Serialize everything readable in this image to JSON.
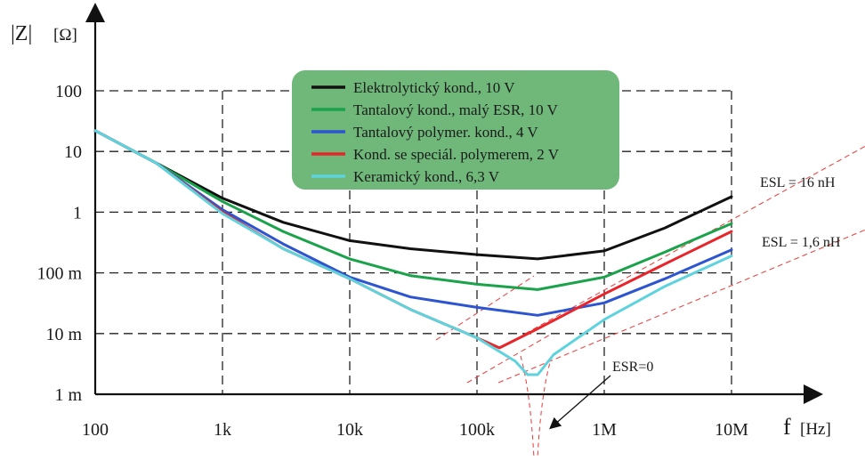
{
  "chart_data": {
    "type": "line",
    "x_scale": "log",
    "y_scale": "log",
    "xlim": [
      100,
      10000000
    ],
    "ylim": [
      0.001,
      100
    ],
    "grid": true,
    "legend_placement": "top-center",
    "ylabel": "|Z|",
    "ylabel_unit": "[Ω]",
    "xlabel": "f",
    "xlabel_unit": "[Hz]",
    "x_ticks": [
      {
        "value": 100,
        "label": "100"
      },
      {
        "value": 1000,
        "label": "1k"
      },
      {
        "value": 10000,
        "label": "10k"
      },
      {
        "value": 100000,
        "label": "100k"
      },
      {
        "value": 1000000,
        "label": "1M"
      },
      {
        "value": 10000000,
        "label": "10M"
      }
    ],
    "y_ticks": [
      {
        "value": 100,
        "label": "100"
      },
      {
        "value": 10,
        "label": "10"
      },
      {
        "value": 1,
        "label": "1"
      },
      {
        "value": 0.1,
        "label": "100 m"
      },
      {
        "value": 0.01,
        "label": "10 m"
      },
      {
        "value": 0.001,
        "label": "1 m"
      }
    ],
    "legend_background": "#6fb87a",
    "series": [
      {
        "name": "Elektrolytický kond., 10 V",
        "color": "#111111",
        "points": [
          [
            100,
            22
          ],
          [
            300,
            6.5
          ],
          [
            1000,
            1.7
          ],
          [
            3000,
            0.68
          ],
          [
            10000,
            0.34
          ],
          [
            30000,
            0.25
          ],
          [
            100000,
            0.2
          ],
          [
            300000,
            0.17
          ],
          [
            1000000,
            0.23
          ],
          [
            3000000,
            0.55
          ],
          [
            10000000,
            1.8
          ]
        ]
      },
      {
        "name": "Tantalový kond., malý ESR, 10 V",
        "color": "#1aa34a",
        "points": [
          [
            100,
            22
          ],
          [
            300,
            6.5
          ],
          [
            1000,
            1.5
          ],
          [
            3000,
            0.48
          ],
          [
            10000,
            0.17
          ],
          [
            30000,
            0.09
          ],
          [
            100000,
            0.065
          ],
          [
            300000,
            0.053
          ],
          [
            1000000,
            0.085
          ],
          [
            3000000,
            0.22
          ],
          [
            10000000,
            0.65
          ]
        ]
      },
      {
        "name": "Tantalový polymer. kond., 4 V",
        "color": "#2e55d0",
        "points": [
          [
            100,
            22
          ],
          [
            300,
            6.5
          ],
          [
            1000,
            1.1
          ],
          [
            3000,
            0.3
          ],
          [
            10000,
            0.085
          ],
          [
            30000,
            0.04
          ],
          [
            100000,
            0.027
          ],
          [
            300000,
            0.02
          ],
          [
            1000000,
            0.032
          ],
          [
            3000000,
            0.08
          ],
          [
            10000000,
            0.24
          ]
        ]
      },
      {
        "name": "Kond. se speciál. polymerem, 2 V",
        "color": "#e8252a",
        "points": [
          [
            100,
            22
          ],
          [
            300,
            6.5
          ],
          [
            1000,
            1.0
          ],
          [
            3000,
            0.25
          ],
          [
            10000,
            0.08
          ],
          [
            30000,
            0.025
          ],
          [
            100000,
            0.0085
          ],
          [
            150000,
            0.0058
          ],
          [
            300000,
            0.012
          ],
          [
            1000000,
            0.045
          ],
          [
            3000000,
            0.14
          ],
          [
            10000000,
            0.48
          ]
        ]
      },
      {
        "name": "Keramický kond., 6,3 V",
        "color": "#5fd3dd",
        "points": [
          [
            100,
            22
          ],
          [
            300,
            6.5
          ],
          [
            1000,
            0.95
          ],
          [
            3000,
            0.25
          ],
          [
            10000,
            0.08
          ],
          [
            30000,
            0.025
          ],
          [
            100000,
            0.0085
          ],
          [
            200000,
            0.0035
          ],
          [
            250000,
            0.0021
          ],
          [
            300000,
            0.0021
          ],
          [
            400000,
            0.0045
          ],
          [
            1000000,
            0.017
          ],
          [
            3000000,
            0.06
          ],
          [
            10000000,
            0.19
          ]
        ]
      }
    ],
    "annotations": [
      {
        "text": "ESL = 16 nH"
      },
      {
        "text": "ESL = 1,6 nH"
      },
      {
        "text": "ESR=0"
      }
    ]
  }
}
